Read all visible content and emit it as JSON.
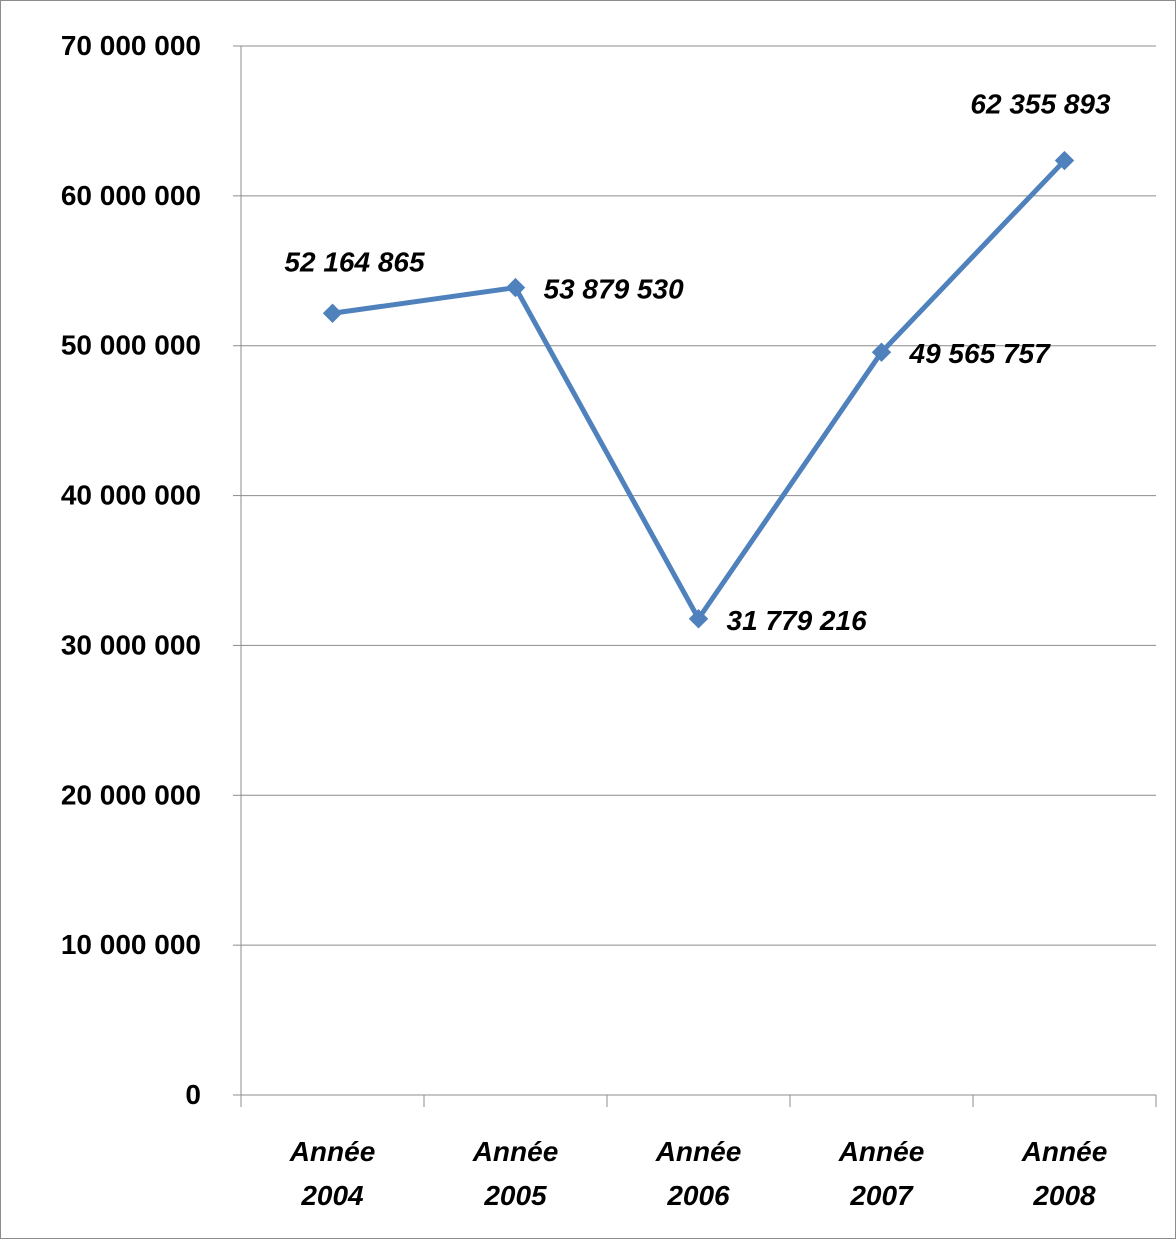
{
  "chart_data": {
    "type": "line",
    "categories": [
      "Année 2004",
      "Année 2005",
      "Année 2006",
      "Année 2007",
      "Année 2008"
    ],
    "category_lines": [
      [
        "Année",
        "2004"
      ],
      [
        "Année",
        "2005"
      ],
      [
        "Année",
        "2006"
      ],
      [
        "Année",
        "2007"
      ],
      [
        "Année",
        "2008"
      ]
    ],
    "series": [
      {
        "values": [
          52164865,
          53879530,
          31779216,
          49565757,
          62355893
        ],
        "color": "#4f81bd",
        "marker": "diamond"
      }
    ],
    "data_labels": [
      "52 164 865",
      "53 879 530",
      "31 779 216",
      "49 565 757",
      "62 355 893"
    ],
    "ylim": [
      0,
      70000000
    ],
    "yticks": [
      0,
      10000000,
      20000000,
      30000000,
      40000000,
      50000000,
      60000000,
      70000000
    ],
    "ytick_labels": [
      "0",
      "10 000 000",
      "20 000 000",
      "30 000 000",
      "40 000 000",
      "50 000 000",
      "60 000 000",
      "70 000 000"
    ],
    "grid": true,
    "legend": "none",
    "title": "",
    "xlabel": "",
    "ylabel": ""
  }
}
